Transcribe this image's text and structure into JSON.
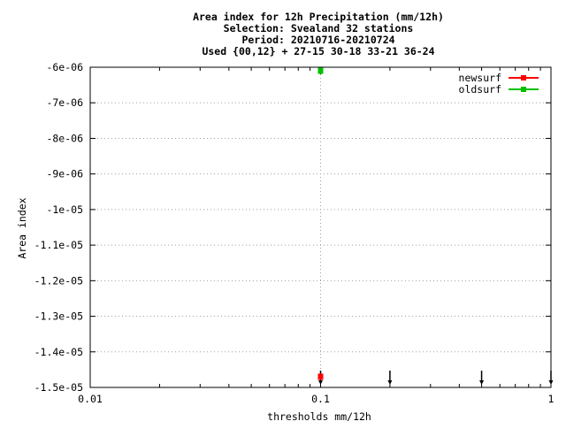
{
  "chart_data": {
    "type": "scatter",
    "title_lines": [
      "Area index  for 12h Precipitation (mm/12h)",
      "Selection: Svealand     32 stations",
      "Period: 20210716-20210724",
      "Used {00,12} + 27-15 30-18 33-21 36-24"
    ],
    "xlabel": "thresholds mm/12h",
    "ylabel": "Area index",
    "x_scale": "log",
    "xlim": [
      0.01,
      1
    ],
    "ylim": [
      -1.5e-05,
      -6e-06
    ],
    "x_ticks": [
      {
        "value": 0.01,
        "label": "0.01"
      },
      {
        "value": 0.1,
        "label": "0.1"
      },
      {
        "value": 1,
        "label": "1"
      }
    ],
    "y_ticks": [
      {
        "value": -6e-06,
        "label": "-6e-06"
      },
      {
        "value": -7e-06,
        "label": "-7e-06"
      },
      {
        "value": -8e-06,
        "label": "-8e-06"
      },
      {
        "value": -9e-06,
        "label": "-9e-06"
      },
      {
        "value": -1e-05,
        "label": "-1e-05"
      },
      {
        "value": -1.1e-05,
        "label": "-1.1e-05"
      },
      {
        "value": -1.2e-05,
        "label": "-1.2e-05"
      },
      {
        "value": -1.3e-05,
        "label": "-1.3e-05"
      },
      {
        "value": -1.4e-05,
        "label": "-1.4e-05"
      },
      {
        "value": -1.5e-05,
        "label": "-1.5e-05"
      }
    ],
    "grid": true,
    "legend_position": "top-right",
    "series": [
      {
        "name": "newsurf",
        "color": "#ff0000",
        "points": [
          {
            "x": 0.1,
            "y": -1.47e-05
          }
        ]
      },
      {
        "name": "oldsurf",
        "color": "#00c000",
        "points": [
          {
            "x": 0.1,
            "y": -6.1e-06
          }
        ]
      }
    ],
    "arrow_markers": [
      {
        "x": 0.1
      },
      {
        "x": 0.2
      },
      {
        "x": 0.5
      },
      {
        "x": 1
      }
    ]
  }
}
